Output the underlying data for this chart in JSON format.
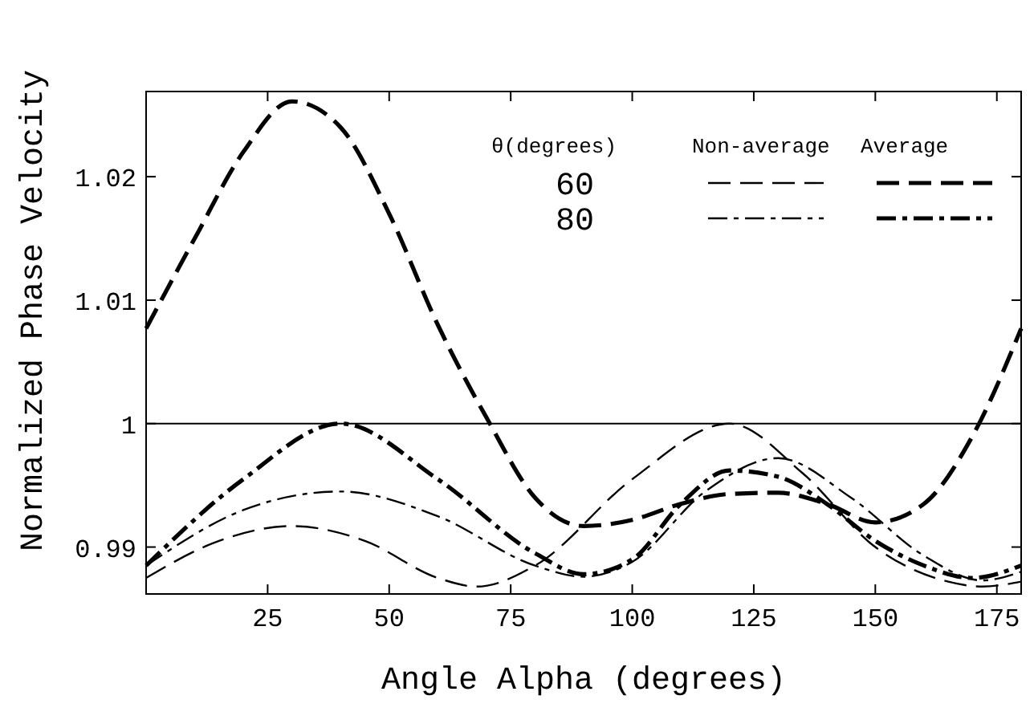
{
  "chart_data": {
    "type": "line",
    "xlabel": "Angle Alpha (degrees)",
    "ylabel": "Normalized Phase Velocity",
    "legend_title": "θ(degrees)",
    "annotations": [
      "Non-average",
      "Average",
      "60",
      "80"
    ],
    "xlim": [
      0,
      180
    ],
    "xticks": [
      25,
      50,
      75,
      100,
      125,
      150,
      175
    ],
    "ylim": [
      0.9862,
      1.0269
    ],
    "yticks": [
      0.99,
      1,
      1.01,
      1.02
    ],
    "grid": false,
    "ref_lines": [
      {
        "axis": "y",
        "value": 1,
        "color": "#000000",
        "line_style": "solid"
      }
    ],
    "series": [
      {
        "color": "#000000",
        "line_style": "dashed",
        "x": [
          0,
          15,
          30,
          45,
          60,
          68,
          80,
          100,
          120,
          135,
          150,
          165,
          172,
          180
        ],
        "values": [
          0.9875,
          0.9905,
          0.9917,
          0.9905,
          0.9875,
          0.9868,
          0.9885,
          0.9955,
          1.0,
          0.996,
          0.99,
          0.9872,
          0.9868,
          0.9872
        ]
      },
      {
        "color": "#000000",
        "line_style": "dashed",
        "x": [
          0,
          10,
          20,
          30,
          40,
          50,
          60,
          70,
          80,
          90,
          100,
          110,
          120,
          130,
          140,
          150,
          160,
          170,
          180
        ],
        "values": [
          1.0077,
          1.015,
          1.022,
          1.0261,
          1.024,
          1.017,
          1.008,
          1.0005,
          0.994,
          0.9917,
          0.9922,
          0.9935,
          0.9943,
          0.9944,
          0.9935,
          0.992,
          0.9935,
          0.999,
          1.0077
        ]
      },
      {
        "color": "#000000",
        "line_style": "dashdot",
        "x": [
          0,
          20,
          40,
          60,
          80,
          90,
          100,
          115,
          130,
          145,
          160,
          172,
          180
        ],
        "values": [
          0.9885,
          0.993,
          0.9945,
          0.9925,
          0.9885,
          0.9876,
          0.9888,
          0.9945,
          0.9972,
          0.994,
          0.9893,
          0.9873,
          0.988
        ]
      },
      {
        "color": "#000000",
        "line_style": "dashdot",
        "x": [
          0,
          20,
          40,
          60,
          80,
          90,
          100,
          110,
          120,
          130,
          140,
          150,
          160,
          170,
          180
        ],
        "values": [
          0.9885,
          0.9955,
          1.0,
          0.9955,
          0.9895,
          0.9878,
          0.989,
          0.9935,
          0.9962,
          0.9957,
          0.9935,
          0.9905,
          0.9885,
          0.9875,
          0.9885
        ]
      }
    ]
  }
}
